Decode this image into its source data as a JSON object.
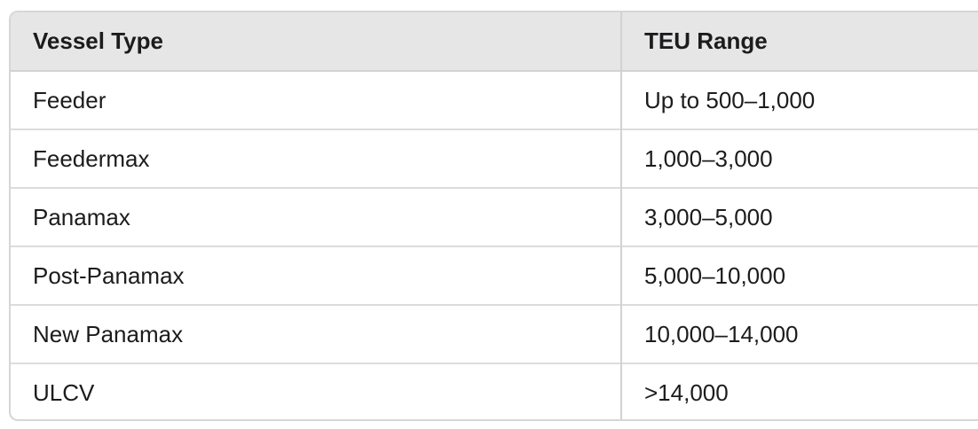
{
  "table": {
    "headers": [
      "Vessel Type",
      "TEU Range"
    ],
    "rows": [
      [
        "Feeder",
        "Up to 500–1,000"
      ],
      [
        "Feedermax",
        "1,000–3,000"
      ],
      [
        "Panamax",
        "3,000–5,000"
      ],
      [
        "Post-Panamax",
        "5,000–10,000"
      ],
      [
        "New Panamax",
        "10,000–14,000"
      ],
      [
        "ULCV",
        ">14,000"
      ]
    ]
  }
}
